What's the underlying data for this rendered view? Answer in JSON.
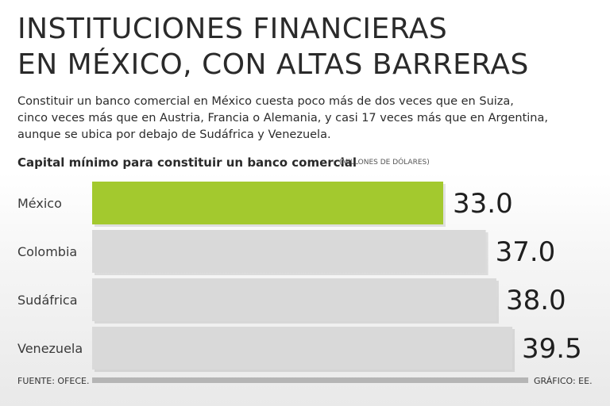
{
  "header": {
    "title": "INSTITUCIONES FINANCIERAS\nEN MÉXICO, CON ALTAS BARRERAS",
    "subtitle": "Constituir un banco comercial en México cuesta poco más de dos veces que en Suiza,\ncinco veces más que en Austria, Francia o Alemania, y casi 17 veces más que en Argentina,\naunque se ubica por debajo de Sudáfrica y Venezuela."
  },
  "chart_data": {
    "type": "bar",
    "orientation": "horizontal",
    "title": "Capital mínimo para constituir un banco comercial",
    "unit": "(MILLONES DE DÓLARES)",
    "categories": [
      "México",
      "Colombia",
      "Sudáfrica",
      "Venezuela"
    ],
    "values": [
      33.0,
      37.0,
      38.0,
      39.5
    ],
    "value_labels": [
      "33.0",
      "37.0",
      "38.0",
      "39.5"
    ],
    "colors": {
      "highlight": "#a3c92e",
      "default": "#d9d9d9",
      "axis": "#b5b5b5"
    }
  },
  "footer": {
    "source": "FUENTE: OFECE.",
    "credit": "GRÁFICO: EE."
  }
}
